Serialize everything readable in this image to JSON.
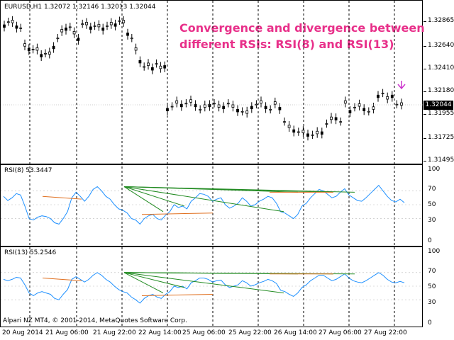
{
  "main_chart": {
    "symbol_label": "EURUSD,H1  1.32072 1.32146 1.32013 1.32044",
    "annotation_line1": "Convergence and divergence between",
    "annotation_line2": "different RSIs: RSI(8) and RSI(13)",
    "price_scale": [
      "1.32865",
      "1.32640",
      "1.32410",
      "1.32180",
      "1.31955",
      "1.31725",
      "1.31495"
    ],
    "current_price": "1.32044",
    "candles": [
      1.3283,
      1.3286,
      1.3285,
      1.3282,
      1.328,
      1.3262,
      1.326,
      1.3259,
      1.3258,
      1.3254,
      1.3255,
      1.3254,
      1.3262,
      1.327,
      1.3276,
      1.328,
      1.3281,
      1.3274,
      1.327,
      1.3284,
      1.3283,
      1.3281,
      1.3282,
      1.3281,
      1.328,
      1.3282,
      1.3283,
      1.3284,
      1.3287,
      1.3285,
      1.3275,
      1.327,
      1.3258,
      1.3248,
      1.3242,
      1.3243,
      1.3241,
      1.3245,
      1.324,
      1.3243
    ],
    "candles2": [
      1.3201,
      1.3203,
      1.3206,
      1.3205,
      1.3206,
      1.3207,
      1.3205,
      1.32,
      1.3202,
      1.3205,
      1.3206,
      1.3202,
      1.3203,
      1.3206,
      1.3202,
      1.32,
      1.3198,
      1.3196,
      1.3203,
      1.3205,
      1.3206,
      1.3203,
      1.32,
      1.3205,
      1.3202,
      1.3188,
      1.3182,
      1.318,
      1.3178,
      1.3177,
      1.3176,
      1.3175,
      1.3176,
      1.3178,
      1.3186,
      1.319,
      1.3192,
      1.3188,
      1.3206,
      1.3199,
      1.3202,
      1.3203,
      1.3201,
      1.3198,
      1.32,
      1.3214,
      1.3216,
      1.321,
      1.3214,
      1.3205,
      1.3204
    ]
  },
  "rsi8": {
    "label": "RSI(8) 53.3447",
    "scale": [
      "100",
      "70",
      "50",
      "30",
      "0"
    ],
    "values": [
      62,
      56,
      60,
      66,
      64,
      48,
      30,
      28,
      32,
      34,
      33,
      30,
      24,
      22,
      30,
      40,
      60,
      68,
      62,
      55,
      62,
      72,
      76,
      70,
      62,
      58,
      50,
      44,
      42,
      38,
      30,
      28,
      22,
      30,
      34,
      36,
      30,
      28,
      35,
      40,
      50,
      46,
      48,
      44,
      55,
      60,
      66,
      65,
      62,
      55,
      58,
      60,
      50,
      45,
      48,
      52,
      60,
      55,
      48,
      50,
      55,
      58,
      62,
      60,
      52,
      40,
      38,
      34,
      30,
      36,
      48,
      52,
      60,
      66,
      72,
      70,
      65,
      60,
      62,
      68,
      73,
      64,
      60,
      56,
      55,
      60,
      66,
      72,
      78,
      70,
      62,
      56,
      54,
      58,
      53
    ]
  },
  "rsi13": {
    "label": "RSI(13) 55.2546",
    "scale": [
      "100",
      "70",
      "50",
      "30",
      "0"
    ],
    "values": [
      60,
      58,
      60,
      63,
      62,
      52,
      40,
      36,
      40,
      42,
      40,
      38,
      32,
      30,
      38,
      45,
      60,
      64,
      60,
      56,
      60,
      66,
      70,
      66,
      60,
      56,
      50,
      45,
      42,
      40,
      34,
      30,
      25,
      32,
      36,
      38,
      34,
      32,
      38,
      42,
      50,
      48,
      50,
      46,
      55,
      58,
      62,
      62,
      60,
      56,
      58,
      59,
      52,
      48,
      50,
      52,
      58,
      55,
      50,
      52,
      55,
      57,
      60,
      58,
      54,
      44,
      42,
      38,
      35,
      40,
      48,
      52,
      58,
      62,
      66,
      66,
      62,
      58,
      60,
      64,
      68,
      62,
      58,
      56,
      55,
      58,
      62,
      66,
      70,
      66,
      60,
      56,
      55,
      57,
      55
    ]
  },
  "time_axis": [
    "20 Aug 2014",
    "21 Aug 06:00",
    "21 Aug 22:00",
    "22 Aug 14:00",
    "25 Aug 06:00",
    "25 Aug 22:00",
    "26 Aug 14:00",
    "27 Aug 06:00",
    "27 Aug 22:00"
  ],
  "copyright": "Alpari NZ MT4, © 2001-2014, MetaQuotes Software Corp.",
  "colors": {
    "rsi_line": "#1e90ff",
    "fan_lines": "#228b22",
    "divergence_line": "#e07020",
    "annotation": "#e8308a",
    "arrow": "#cc33cc"
  }
}
